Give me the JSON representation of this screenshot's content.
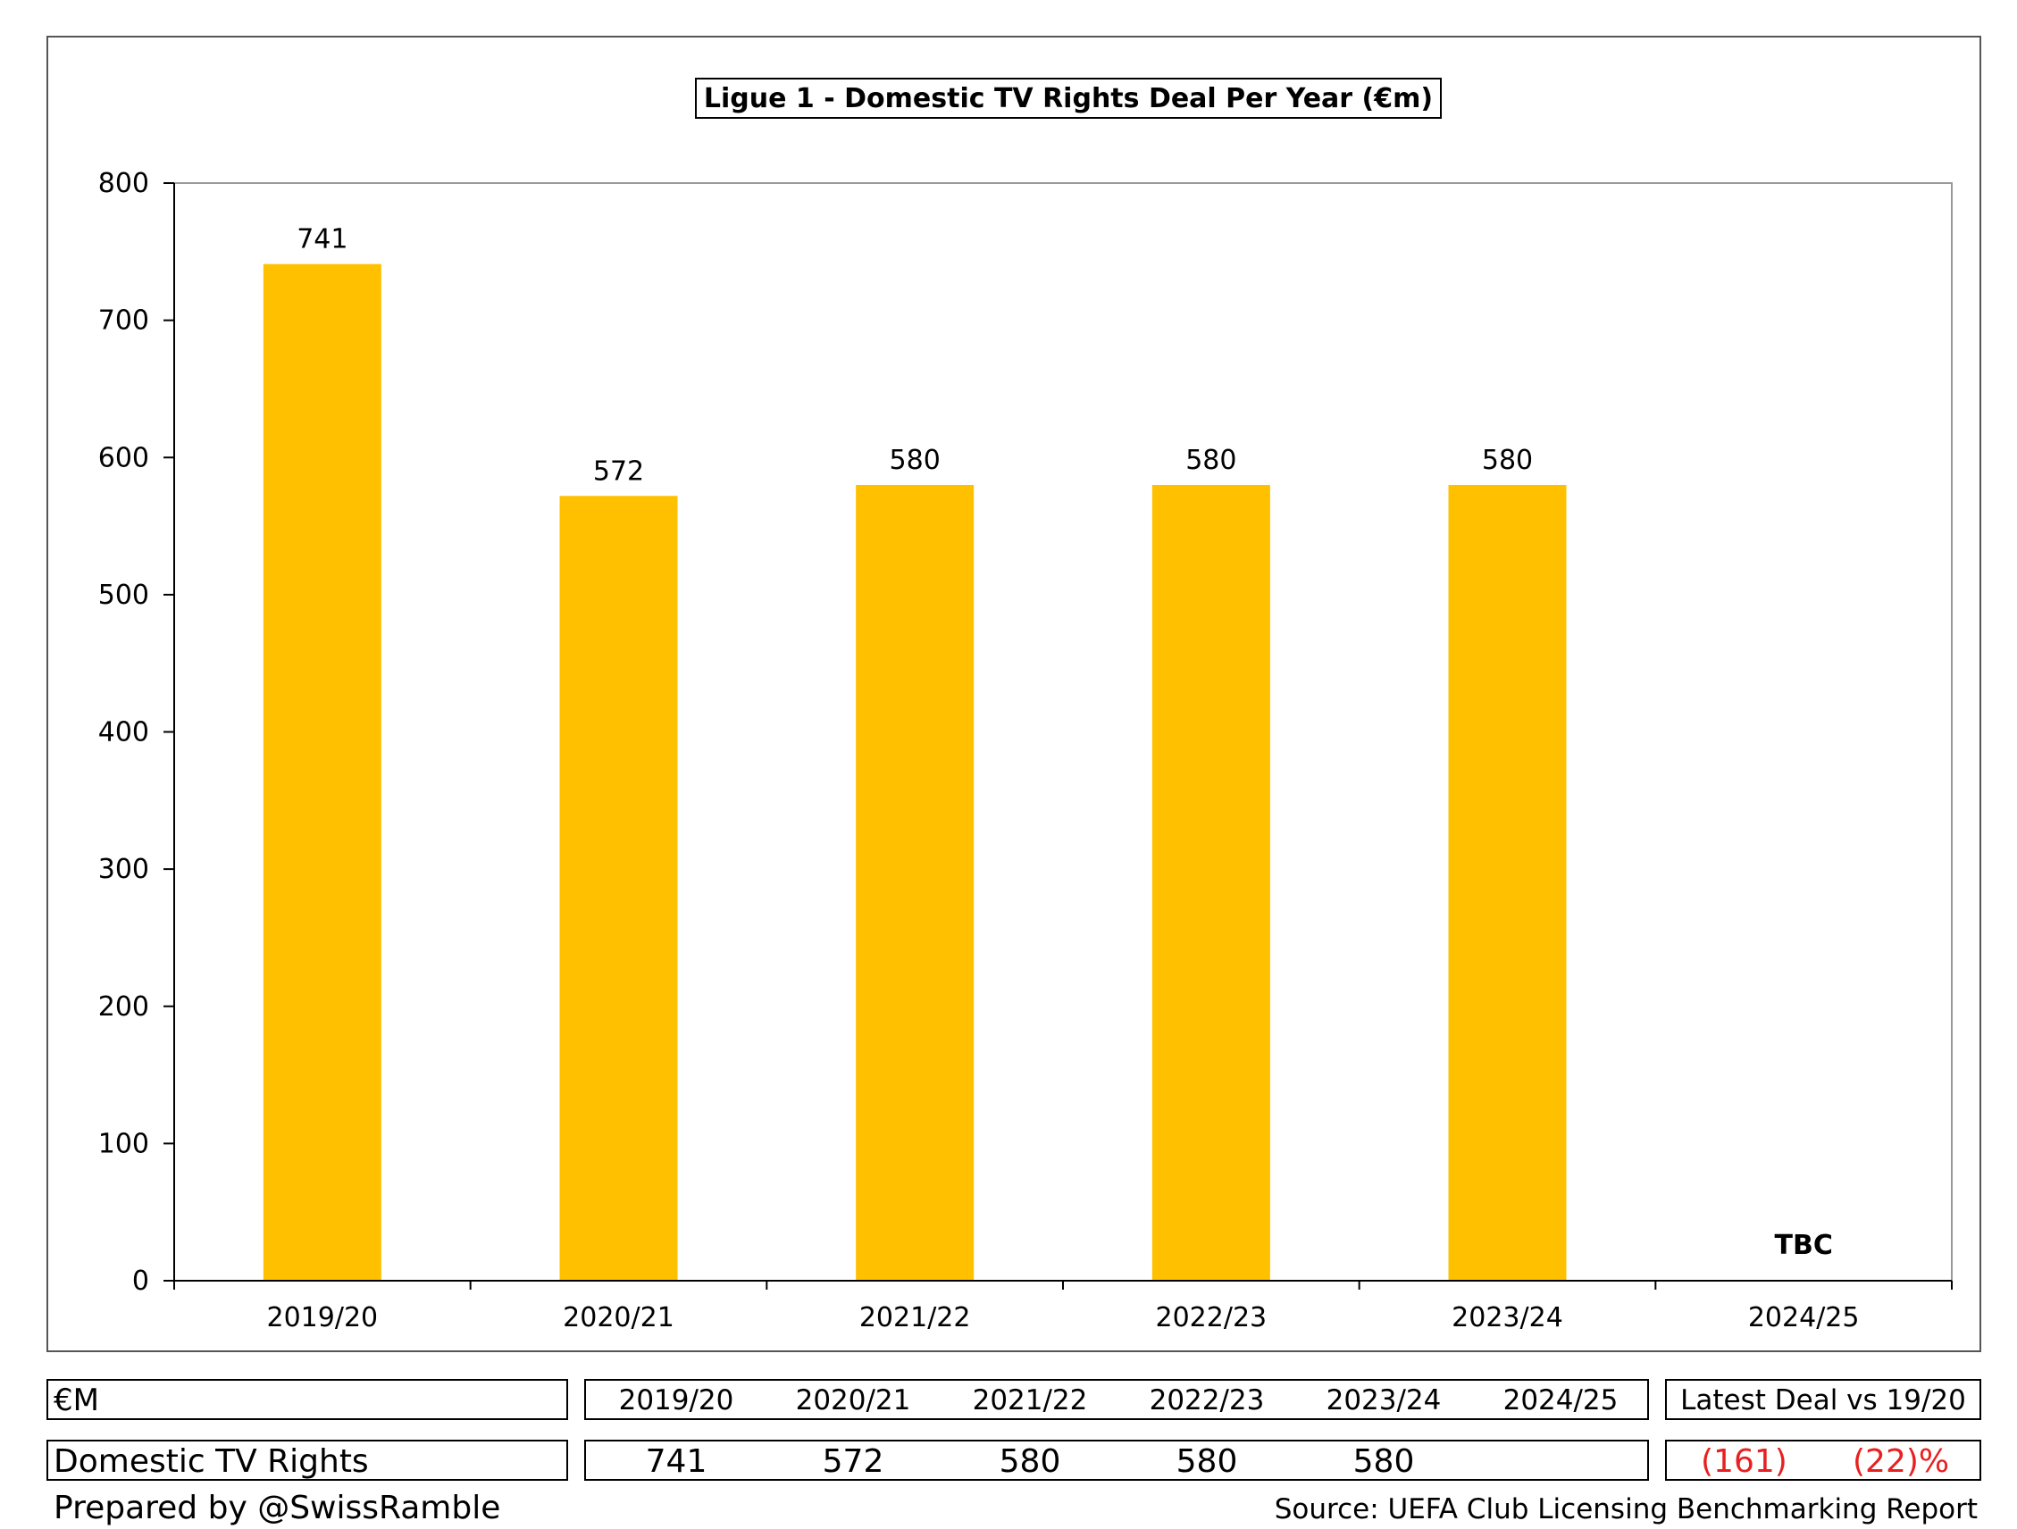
{
  "chart_data": {
    "type": "bar",
    "title": "Ligue 1 - Domestic TV Rights Deal Per Year (€m)",
    "categories": [
      "2019/20",
      "2020/21",
      "2021/22",
      "2022/23",
      "2023/24",
      "2024/25"
    ],
    "values": [
      741,
      572,
      580,
      580,
      580,
      null
    ],
    "data_labels": [
      "741",
      "572",
      "580",
      "580",
      "580",
      "TBC"
    ],
    "yticks": [
      "0",
      "100",
      "200",
      "300",
      "400",
      "500",
      "600",
      "700",
      "800"
    ],
    "ylim": [
      0,
      800
    ],
    "bar_color": "#FFC000",
    "grid": false
  },
  "table": {
    "unit_label": "€M",
    "row_label": "Domestic TV Rights",
    "years": [
      "2019/20",
      "2020/21",
      "2021/22",
      "2022/23",
      "2023/24",
      "2024/25"
    ],
    "values": [
      "741",
      "572",
      "580",
      "580",
      "580",
      ""
    ],
    "comparison_header": "Latest Deal vs 19/20",
    "comparison_abs": "(161)",
    "comparison_pct": "(22)%",
    "negative_color": "#e8201f"
  },
  "footer": {
    "prepared_by": "Prepared by @SwissRamble",
    "source": "Source: UEFA Club Licensing Benchmarking Report"
  }
}
